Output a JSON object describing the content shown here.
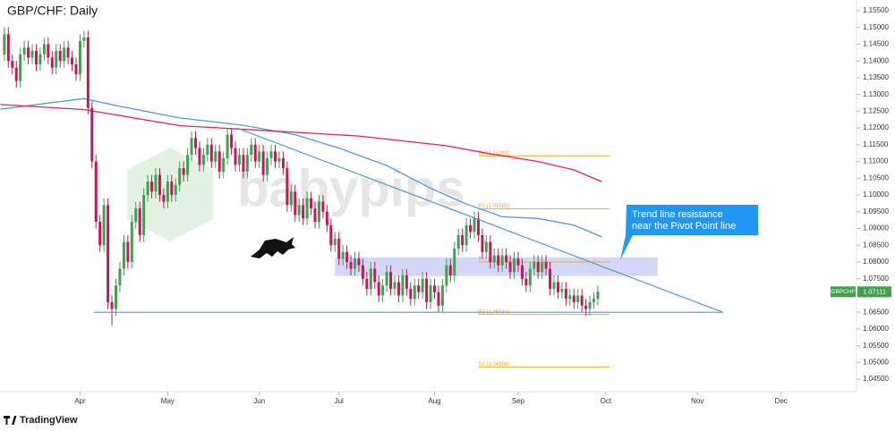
{
  "chart_data": {
    "type": "candlestick",
    "title": "GBP/CHF: Daily",
    "symbol": "GBPCHF",
    "watermark": "babypips",
    "footer": "TradingView",
    "up_color": "#3fa34d",
    "down_color": "#c4185c",
    "ylim": [
      1.0413,
      1.1582
    ],
    "xlim": [
      -1.1,
      213.5
    ],
    "yticks": [
      {
        "value": 1.045,
        "label": "1.04500"
      },
      {
        "value": 1.05,
        "label": "1.05000"
      },
      {
        "value": 1.055,
        "label": "1.05500"
      },
      {
        "value": 1.06,
        "label": "1.06000"
      },
      {
        "value": 1.065,
        "label": "1.06500"
      },
      {
        "value": 1.07,
        "label": "1.07000"
      },
      {
        "value": 1.075,
        "label": "1.07500"
      },
      {
        "value": 1.08,
        "label": "1.08000"
      },
      {
        "value": 1.085,
        "label": "1.08500"
      },
      {
        "value": 1.09,
        "label": "1.09000"
      },
      {
        "value": 1.095,
        "label": "1.09500"
      },
      {
        "value": 1.1,
        "label": "1.10000"
      },
      {
        "value": 1.105,
        "label": "1.10500"
      },
      {
        "value": 1.11,
        "label": "1.11000"
      },
      {
        "value": 1.115,
        "label": "1.11500"
      },
      {
        "value": 1.12,
        "label": "1.12000"
      },
      {
        "value": 1.125,
        "label": "1.12500"
      },
      {
        "value": 1.13,
        "label": "1.13000"
      },
      {
        "value": 1.135,
        "label": "1.13500"
      },
      {
        "value": 1.14,
        "label": "1.14000"
      },
      {
        "value": 1.145,
        "label": "1.14500"
      },
      {
        "value": 1.15,
        "label": "1.15000"
      },
      {
        "value": 1.155,
        "label": "1.15500"
      }
    ],
    "xticks": [
      {
        "value": 19,
        "label": "Apr"
      },
      {
        "value": 41,
        "label": "May"
      },
      {
        "value": 64,
        "label": "Jun"
      },
      {
        "value": 84,
        "label": "Jul"
      },
      {
        "value": 108,
        "label": "Aug"
      },
      {
        "value": 129,
        "label": "Sep"
      },
      {
        "value": 151,
        "label": "Oct"
      },
      {
        "value": 174,
        "label": "Nov"
      },
      {
        "value": 195,
        "label": "Dec"
      }
    ],
    "open": [
      1.142,
      1.148,
      1.14,
      1.138,
      1.134,
      1.142,
      1.144,
      1.141,
      1.143,
      1.139,
      1.142,
      1.145,
      1.141,
      1.138,
      1.143,
      1.14,
      1.144,
      1.141,
      1.139,
      1.136,
      1.146,
      1.147,
      1.126,
      1.11,
      1.092,
      1.085,
      1.097,
      1.068,
      1.066,
      1.073,
      1.078,
      1.086,
      1.08,
      1.092,
      1.096,
      1.088,
      1.1,
      1.104,
      1.101,
      1.106,
      1.1,
      1.098,
      1.104,
      1.1,
      1.103,
      1.108,
      1.106,
      1.112,
      1.117,
      1.114,
      1.109,
      1.112,
      1.115,
      1.11,
      1.113,
      1.107,
      1.111,
      1.118,
      1.114,
      1.109,
      1.112,
      1.107,
      1.112,
      1.115,
      1.11,
      1.113,
      1.106,
      1.111,
      1.113,
      1.11,
      1.111,
      1.108,
      1.097,
      1.101,
      1.094,
      1.097,
      1.093,
      1.099,
      1.096,
      1.092,
      1.098,
      1.095,
      1.091,
      1.085,
      1.087,
      1.081,
      1.083,
      1.08,
      1.078,
      1.081,
      1.079,
      1.075,
      1.072,
      1.078,
      1.074,
      1.07,
      1.073,
      1.077,
      1.072,
      1.074,
      1.07,
      1.076,
      1.072,
      1.069,
      1.073,
      1.071,
      1.075,
      1.068,
      1.073,
      1.071,
      1.067,
      1.073,
      1.079,
      1.076,
      1.084,
      1.088,
      1.085,
      1.091,
      1.089,
      1.093,
      1.088,
      1.083,
      1.086,
      1.08,
      1.082,
      1.079,
      1.082,
      1.08,
      1.077,
      1.081,
      1.079,
      1.075,
      1.073,
      1.078,
      1.08,
      1.077,
      1.08,
      1.078,
      1.072,
      1.074,
      1.071,
      1.072,
      1.069,
      1.07,
      1.068,
      1.07,
      1.067,
      1.066,
      1.068,
      1.069
    ],
    "high": [
      1.15,
      1.15,
      1.142,
      1.14,
      1.144,
      1.146,
      1.146,
      1.145,
      1.145,
      1.144,
      1.147,
      1.147,
      1.143,
      1.145,
      1.145,
      1.146,
      1.146,
      1.143,
      1.141,
      1.148,
      1.149,
      1.149,
      1.128,
      1.112,
      1.094,
      1.099,
      1.099,
      1.07,
      1.075,
      1.08,
      1.088,
      1.088,
      1.094,
      1.098,
      1.098,
      1.102,
      1.106,
      1.106,
      1.108,
      1.108,
      1.102,
      1.106,
      1.106,
      1.105,
      1.11,
      1.11,
      1.114,
      1.119,
      1.119,
      1.116,
      1.114,
      1.117,
      1.117,
      1.115,
      1.115,
      1.113,
      1.12,
      1.12,
      1.116,
      1.114,
      1.114,
      1.114,
      1.117,
      1.117,
      1.115,
      1.115,
      1.113,
      1.115,
      1.115,
      1.113,
      1.113,
      1.11,
      1.103,
      1.103,
      1.099,
      1.099,
      1.101,
      1.101,
      1.098,
      1.1,
      1.1,
      1.097,
      1.093,
      1.089,
      1.089,
      1.085,
      1.085,
      1.082,
      1.083,
      1.083,
      1.081,
      1.077,
      1.08,
      1.08,
      1.076,
      1.075,
      1.079,
      1.079,
      1.076,
      1.076,
      1.078,
      1.078,
      1.074,
      1.075,
      1.075,
      1.077,
      1.077,
      1.075,
      1.075,
      1.073,
      1.075,
      1.081,
      1.081,
      1.086,
      1.09,
      1.09,
      1.093,
      1.093,
      1.095,
      1.095,
      1.09,
      1.088,
      1.088,
      1.084,
      1.084,
      1.084,
      1.084,
      1.082,
      1.083,
      1.083,
      1.081,
      1.077,
      1.08,
      1.082,
      1.082,
      1.082,
      1.082,
      1.08,
      1.076,
      1.076,
      1.074,
      1.074,
      1.072,
      1.072,
      1.072,
      1.072,
      1.069,
      1.07,
      1.071,
      1.073
    ],
    "low": [
      1.14,
      1.138,
      1.136,
      1.132,
      1.132,
      1.14,
      1.139,
      1.139,
      1.137,
      1.137,
      1.14,
      1.139,
      1.136,
      1.136,
      1.138,
      1.138,
      1.139,
      1.137,
      1.134,
      1.134,
      1.144,
      1.124,
      1.108,
      1.09,
      1.083,
      1.083,
      1.066,
      1.061,
      1.064,
      1.071,
      1.076,
      1.078,
      1.078,
      1.09,
      1.086,
      1.086,
      1.098,
      1.099,
      1.099,
      1.098,
      1.096,
      1.096,
      1.098,
      1.098,
      1.101,
      1.104,
      1.104,
      1.11,
      1.112,
      1.107,
      1.107,
      1.11,
      1.108,
      1.108,
      1.105,
      1.105,
      1.109,
      1.112,
      1.107,
      1.107,
      1.105,
      1.105,
      1.11,
      1.108,
      1.108,
      1.104,
      1.104,
      1.109,
      1.108,
      1.108,
      1.106,
      1.095,
      1.095,
      1.092,
      1.092,
      1.091,
      1.091,
      1.094,
      1.09,
      1.09,
      1.093,
      1.089,
      1.083,
      1.083,
      1.079,
      1.079,
      1.078,
      1.076,
      1.076,
      1.077,
      1.073,
      1.07,
      1.07,
      1.072,
      1.068,
      1.068,
      1.071,
      1.07,
      1.07,
      1.068,
      1.068,
      1.07,
      1.067,
      1.067,
      1.069,
      1.069,
      1.066,
      1.066,
      1.069,
      1.065,
      1.065,
      1.071,
      1.074,
      1.074,
      1.082,
      1.083,
      1.083,
      1.087,
      1.087,
      1.086,
      1.081,
      1.081,
      1.078,
      1.078,
      1.077,
      1.077,
      1.078,
      1.075,
      1.075,
      1.077,
      1.073,
      1.071,
      1.071,
      1.076,
      1.075,
      1.075,
      1.076,
      1.07,
      1.07,
      1.069,
      1.069,
      1.067,
      1.067,
      1.066,
      1.066,
      1.065,
      1.064,
      1.064,
      1.066,
      1.067
    ],
    "close": [
      1.148,
      1.14,
      1.138,
      1.134,
      1.142,
      1.144,
      1.141,
      1.143,
      1.139,
      1.142,
      1.145,
      1.141,
      1.138,
      1.143,
      1.14,
      1.144,
      1.141,
      1.139,
      1.136,
      1.146,
      1.147,
      1.126,
      1.11,
      1.092,
      1.085,
      1.097,
      1.068,
      1.066,
      1.073,
      1.078,
      1.086,
      1.08,
      1.092,
      1.096,
      1.088,
      1.1,
      1.104,
      1.101,
      1.106,
      1.1,
      1.098,
      1.104,
      1.1,
      1.103,
      1.108,
      1.106,
      1.112,
      1.117,
      1.114,
      1.109,
      1.112,
      1.115,
      1.11,
      1.113,
      1.107,
      1.111,
      1.118,
      1.114,
      1.109,
      1.112,
      1.107,
      1.112,
      1.115,
      1.11,
      1.113,
      1.106,
      1.111,
      1.113,
      1.11,
      1.111,
      1.108,
      1.097,
      1.101,
      1.094,
      1.097,
      1.093,
      1.099,
      1.096,
      1.092,
      1.098,
      1.095,
      1.091,
      1.085,
      1.087,
      1.081,
      1.083,
      1.08,
      1.078,
      1.081,
      1.079,
      1.075,
      1.072,
      1.078,
      1.074,
      1.07,
      1.073,
      1.077,
      1.072,
      1.074,
      1.07,
      1.076,
      1.072,
      1.069,
      1.073,
      1.071,
      1.075,
      1.068,
      1.073,
      1.071,
      1.067,
      1.073,
      1.079,
      1.076,
      1.084,
      1.088,
      1.085,
      1.091,
      1.089,
      1.093,
      1.088,
      1.083,
      1.086,
      1.08,
      1.082,
      1.079,
      1.082,
      1.08,
      1.077,
      1.081,
      1.079,
      1.075,
      1.073,
      1.078,
      1.08,
      1.077,
      1.08,
      1.078,
      1.072,
      1.074,
      1.071,
      1.072,
      1.069,
      1.07,
      1.068,
      1.07,
      1.067,
      1.066,
      1.068,
      1.069,
      1.07111
    ],
    "moving_averages": [
      {
        "color": "#4a9be0",
        "x": [
          -1,
          20,
          28,
          44,
          60,
          73,
          84,
          96,
          107,
          116,
          125,
          134,
          143,
          150
        ],
        "y": [
          1.1256,
          1.1288,
          1.1267,
          1.123,
          1.1208,
          1.118,
          1.114,
          1.1088,
          1.102,
          1.0973,
          1.0935,
          1.093,
          1.091,
          1.0875
        ]
      },
      {
        "color": "#e91e63",
        "x": [
          -1,
          20,
          44,
          89,
          111,
          122,
          134,
          143,
          150
        ],
        "y": [
          1.127,
          1.1255,
          1.1207,
          1.1176,
          1.1147,
          1.1123,
          1.11,
          1.1075,
          1.104
        ]
      }
    ],
    "trend_line": {
      "color": "#4a9be0",
      "x": [
        58.4,
        180.4
      ],
      "y": [
        1.12,
        1.065
      ]
    },
    "support_line": {
      "color": "#4a9be0",
      "x": [
        22.5,
        180.4
      ],
      "y": [
        1.065,
        1.065
      ]
    },
    "zone": {
      "color": "#9ea6f0",
      "x": [
        83,
        164
      ],
      "y": [
        1.0758,
        1.0814
      ]
    },
    "pivot_x": [
      119,
      152
    ],
    "pivots": [
      {
        "label": "R2 (1.11168)",
        "value": 1.11168
      },
      {
        "label": "R1 (1.09585)",
        "value": 1.09585
      },
      {
        "label": "P",
        "value": 1.08
      },
      {
        "label": "S1 (1.06434)",
        "value": 1.06434
      },
      {
        "label": "S2 (1.04866)",
        "value": 1.04866
      }
    ],
    "callout": [
      "Trend line resistance",
      "near the Pivot Point line"
    ]
  }
}
